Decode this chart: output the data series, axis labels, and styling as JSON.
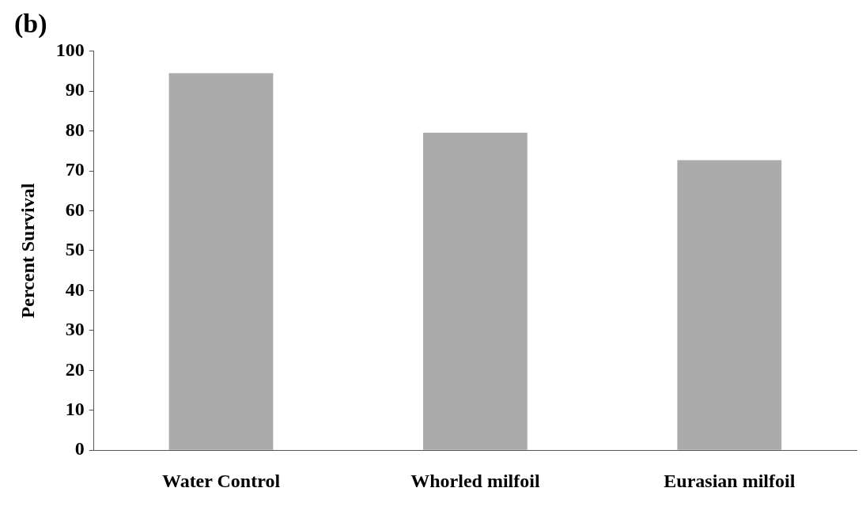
{
  "chart_data": {
    "type": "bar",
    "title": "(b)",
    "ylabel": "Percent Survival",
    "categories": [
      "Water Control",
      "Whorled milfoil",
      "Eurasian milfoil"
    ],
    "values": [
      94.5,
      79.6,
      72.7
    ],
    "color": "#ababab",
    "ylim": [
      0,
      100
    ],
    "yticks": [
      0,
      10,
      20,
      30,
      40,
      50,
      60,
      70,
      80,
      90,
      100
    ],
    "grid": false,
    "legend": false
  }
}
